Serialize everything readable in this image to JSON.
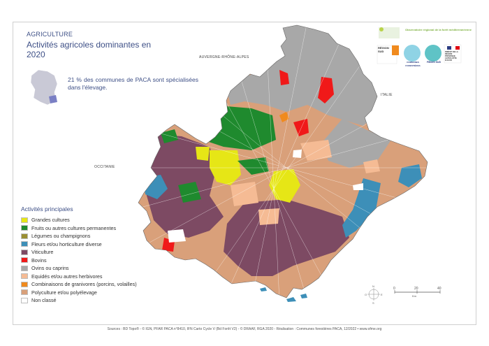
{
  "header": {
    "kicker": "AGRICULTURE",
    "title": "Activités agricoles dominantes en 2020"
  },
  "fact": "21 % des communes de PACA sont spécialisées dans l'élevage.",
  "regions": {
    "auvergne": "AUVERGNE-RHÔNE-ALPES",
    "italie": "ITALIE",
    "occitanie": "OCCITANIE"
  },
  "legend": {
    "title": "Activités principales",
    "items": [
      {
        "label": "Grandes cultures",
        "color": "#e6e616"
      },
      {
        "label": "Fruits ou autres cultures permanentes",
        "color": "#1f8a2e"
      },
      {
        "label": "Légumes ou champignons",
        "color": "#9a8f33"
      },
      {
        "label": "Fleurs et/ou horticulture diverse",
        "color": "#3d8fb8"
      },
      {
        "label": "Viticulture",
        "color": "#7d4a63"
      },
      {
        "label": "Bovins",
        "color": "#f01919"
      },
      {
        "label": "Ovins ou caprins",
        "color": "#a8a8a8"
      },
      {
        "label": "Equidés et/ou autres herbivores",
        "color": "#f5bb94"
      },
      {
        "label": "Combinaisons de granivores (porcins, volailles)",
        "color": "#f08a1e"
      },
      {
        "label": "Polyculture et/ou polyélevage",
        "color": "#d9a07a"
      },
      {
        "label": "Non classé",
        "color": "#ffffff"
      }
    ]
  },
  "logos": {
    "observatoire": "Observatoire régional de la forêt méditerranéenne",
    "region": "RÉGION SUD",
    "communes": "COMMUNES FORESTIÈRES",
    "fibois": "FIBOIS SUD",
    "prefet": "PRÉFET DE LA RÉGION PROVENCE-ALPES-CÔTE D'AZUR"
  },
  "scale": {
    "ticks": [
      "0",
      "20",
      "40"
    ],
    "unit": "Km"
  },
  "compass": {
    "n": "N",
    "s": "S",
    "e": "E",
    "o": "O"
  },
  "footer": "Sources : BD Topo® - © IGN, PFAR PACA n°8410, IFN Carto Cycle V (Bd Forêt V2) - © DRAAF, RGA 2020 - Réalisation : Communes forestières PACA, 12/2022 • www.ofme.org"
}
